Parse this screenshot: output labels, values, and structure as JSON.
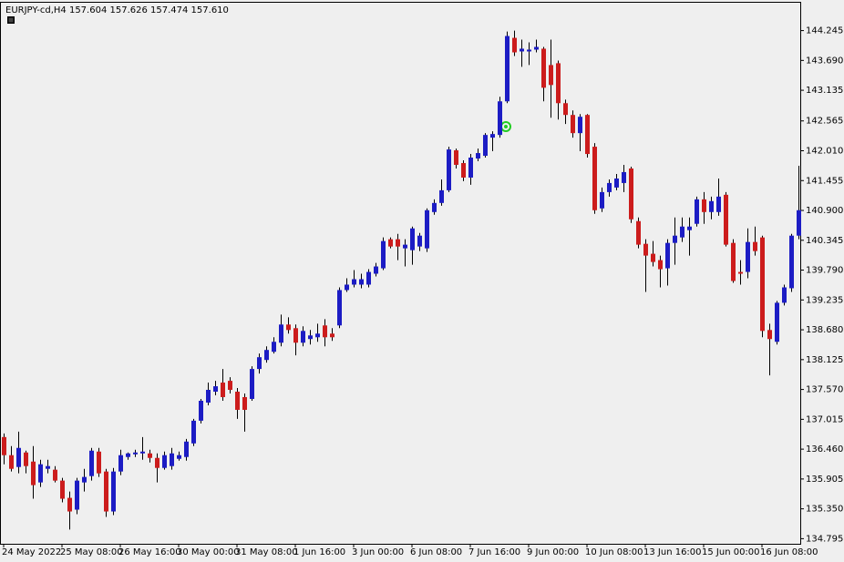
{
  "chart_data": {
    "type": "candlestick",
    "title": "EURJPY-cd,H4  157.604 157.626 157.474 157.610",
    "categories": [
      "24 May 2022",
      null,
      null,
      null,
      null,
      null,
      null,
      null,
      "25 May 08:00",
      null,
      null,
      null,
      null,
      null,
      null,
      null,
      "26 May 16:00",
      null,
      null,
      null,
      null,
      null,
      null,
      null,
      "30 May 00:00",
      null,
      null,
      null,
      null,
      null,
      null,
      null,
      "31 May 08:00",
      null,
      null,
      null,
      null,
      null,
      null,
      null,
      "1 Jun 16:00",
      null,
      null,
      null,
      null,
      null,
      null,
      null,
      "3 Jun 00:00",
      null,
      null,
      null,
      null,
      null,
      null,
      null,
      "6 Jun 08:00",
      null,
      null,
      null,
      null,
      null,
      null,
      null,
      "7 Jun 16:00",
      null,
      null,
      null,
      null,
      null,
      null,
      null,
      "9 Jun 00:00",
      null,
      null,
      null,
      null,
      null,
      null,
      null,
      "10 Jun 08:00",
      null,
      null,
      null,
      null,
      null,
      null,
      null,
      "13 Jun 16:00",
      null,
      null,
      null,
      null,
      null,
      null,
      null,
      "15 Jun 00:00",
      null,
      null,
      null,
      null,
      null,
      null,
      null,
      "16 Jun 08:00",
      null,
      null,
      null,
      null,
      null
    ],
    "open": [
      136.685,
      136.348,
      136.128,
      136.398,
      136.229,
      135.841,
      136.094,
      136.078,
      135.875,
      135.554,
      135.335,
      135.841,
      135.959,
      136.415,
      136.044,
      135.301,
      136.044,
      136.314,
      136.364,
      136.381,
      136.381,
      136.297,
      136.111,
      136.145,
      136.28,
      136.314,
      136.567,
      136.989,
      137.326,
      137.529,
      137.698,
      137.731,
      137.529,
      137.428,
      137.394,
      137.951,
      138.119,
      138.271,
      138.44,
      138.778,
      138.71,
      138.44,
      138.508,
      138.541,
      138.761,
      138.609,
      138.761,
      139.419,
      139.52,
      139.52,
      139.52,
      139.723,
      139.824,
      140.364,
      140.364,
      140.195,
      140.161,
      140.229,
      140.195,
      140.87,
      141.039,
      141.275,
      142.018,
      141.781,
      141.511,
      141.866,
      141.916,
      142.254,
      142.304,
      142.929,
      144.11,
      143.857,
      143.857,
      143.891,
      143.908,
      143.604,
      143.638,
      142.895,
      142.676,
      142.338,
      142.676,
      142.085,
      140.938,
      141.241,
      141.326,
      141.41,
      141.68,
      140.701,
      140.279,
      140.094,
      139.976,
      139.824,
      140.296,
      140.398,
      140.533,
      140.651,
      141.106,
      140.87,
      140.87,
      141.191,
      140.296,
      139.756,
      139.756,
      140.313,
      140.398,
      138.676,
      138.457,
      139.183,
      139.453,
      140.431
    ],
    "high": [
      136.753,
      136.516,
      136.786,
      136.432,
      136.516,
      136.263,
      136.263,
      136.145,
      135.926,
      135.673,
      135.926,
      136.094,
      136.483,
      136.483,
      136.094,
      136.111,
      136.449,
      136.398,
      136.449,
      136.685,
      136.449,
      136.381,
      136.415,
      136.483,
      136.415,
      136.651,
      137.023,
      137.394,
      137.698,
      137.731,
      137.951,
      137.799,
      137.596,
      137.495,
      138.001,
      138.238,
      138.373,
      138.541,
      138.963,
      138.913,
      138.778,
      138.744,
      138.676,
      138.794,
      138.879,
      138.71,
      139.469,
      139.638,
      139.79,
      139.723,
      139.807,
      139.925,
      140.398,
      140.398,
      140.465,
      140.364,
      140.6,
      140.482,
      140.938,
      141.106,
      141.477,
      142.085,
      142.051,
      141.832,
      141.95,
      142.051,
      142.338,
      142.372,
      143.013,
      144.228,
      144.245,
      144.076,
      144.026,
      144.076,
      143.941,
      144.076,
      143.688,
      142.962,
      142.76,
      142.693,
      142.693,
      142.153,
      141.326,
      141.477,
      141.579,
      141.748,
      141.714,
      140.769,
      140.364,
      140.33,
      140.06,
      140.364,
      140.769,
      140.769,
      140.769,
      141.157,
      141.241,
      141.157,
      141.494,
      141.241,
      140.364,
      139.976,
      140.566,
      140.6,
      140.431,
      138.794,
      139.216,
      139.52,
      140.465,
      141.731
    ],
    "low": [
      136.179,
      136.044,
      136.01,
      136.01,
      135.538,
      135.757,
      136.01,
      135.841,
      135.47,
      134.964,
      135.251,
      135.673,
      135.875,
      135.943,
      135.2,
      135.234,
      135.976,
      136.263,
      136.314,
      136.263,
      136.213,
      135.841,
      136.078,
      136.078,
      136.246,
      136.246,
      136.516,
      136.938,
      137.276,
      137.461,
      137.36,
      137.495,
      137.023,
      136.786,
      137.36,
      137.866,
      138.069,
      138.238,
      138.373,
      138.609,
      138.204,
      138.373,
      138.406,
      138.457,
      138.373,
      138.474,
      138.71,
      139.385,
      139.469,
      139.453,
      139.469,
      139.672,
      139.79,
      140.195,
      139.976,
      139.858,
      139.891,
      140.144,
      140.128,
      140.819,
      140.988,
      141.241,
      141.68,
      141.444,
      141.376,
      141.815,
      141.883,
      142.001,
      142.254,
      142.895,
      143.773,
      143.57,
      143.604,
      143.84,
      142.929,
      142.625,
      142.591,
      142.507,
      142.254,
      142.001,
      141.883,
      140.836,
      140.87,
      141.157,
      141.275,
      141.241,
      140.668,
      140.195,
      139.385,
      139.858,
      139.469,
      139.503,
      139.891,
      140.313,
      140.06,
      140.6,
      140.651,
      140.735,
      140.802,
      140.229,
      139.554,
      139.52,
      139.638,
      140.06,
      138.541,
      137.833,
      138.406,
      139.132,
      139.385,
      140.364
    ],
    "close": [
      136.348,
      136.094,
      136.483,
      136.145,
      135.791,
      136.179,
      136.145,
      135.875,
      135.538,
      135.301,
      135.875,
      135.943,
      136.432,
      136.01,
      135.301,
      136.044,
      136.348,
      136.381,
      136.398,
      136.415,
      136.297,
      136.111,
      136.348,
      136.381,
      136.348,
      136.601,
      136.989,
      137.36,
      137.563,
      137.63,
      137.428,
      137.563,
      137.191,
      137.191,
      137.951,
      138.17,
      138.305,
      138.457,
      138.778,
      138.676,
      138.44,
      138.659,
      138.575,
      138.609,
      138.541,
      138.541,
      139.419,
      139.52,
      139.621,
      139.621,
      139.756,
      139.858,
      140.33,
      140.229,
      140.229,
      140.263,
      140.566,
      140.431,
      140.904,
      141.039,
      141.275,
      142.034,
      141.748,
      141.511,
      141.883,
      141.967,
      142.304,
      142.321,
      142.929,
      144.144,
      143.84,
      143.908,
      143.891,
      143.941,
      143.182,
      143.233,
      142.895,
      142.676,
      142.338,
      142.642,
      141.95,
      140.904,
      141.241,
      141.41,
      141.494,
      141.613,
      140.735,
      140.263,
      140.06,
      139.942,
      139.807,
      140.296,
      140.431,
      140.6,
      140.6,
      141.106,
      140.87,
      141.073,
      141.157,
      140.263,
      139.588,
      139.723,
      140.313,
      140.144,
      138.659,
      138.508,
      139.183,
      139.469,
      140.431,
      140.904
    ],
    "ylim": [
      134.7,
      144.78
    ],
    "yticks": [
      144.245,
      {
        "value": 143.69,
        "label": "143.690"
      },
      {
        "value": 143.135,
        "label": "143.135"
      },
      142.565,
      {
        "value": 142.01,
        "label": "142.010"
      },
      141.455,
      {
        "value": 140.9,
        "label": "140.900"
      },
      140.345,
      {
        "value": 139.79,
        "label": "139.790"
      },
      139.235,
      {
        "value": 138.68,
        "label": "138.680"
      },
      138.125,
      {
        "value": 137.57,
        "label": "137.570"
      },
      {
        "value": 137.015,
        "label": "137.015"
      },
      {
        "value": 136.46,
        "label": "136.460"
      },
      {
        "value": 135.905,
        "label": "135.905"
      },
      {
        "value": 135.35,
        "label": "135.350"
      },
      134.795
    ],
    "grid": false,
    "up_color": "#1c1cc4",
    "down_color": "#cc1c1c",
    "wick_color": "#000000"
  }
}
